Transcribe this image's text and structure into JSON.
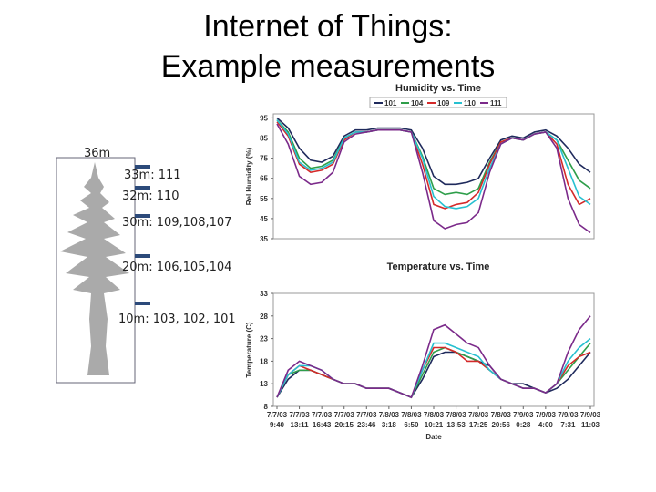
{
  "title_lines": [
    "Internet of Things:",
    "Example measurements"
  ],
  "tree": {
    "height_label": "36m",
    "sensors": [
      "33m: 111",
      "32m: 110",
      "30m: 109,108,107",
      "20m: 106,105,104",
      "10m: 103, 102, 101"
    ]
  },
  "chart_data": [
    {
      "type": "line",
      "title": "Humidity vs. Time",
      "y_label": "Rel Humidity (%)",
      "ylim": [
        35,
        97
      ],
      "yticks": [
        35,
        45,
        55,
        65,
        75,
        85,
        95
      ],
      "series": [
        {
          "name": "101",
          "color": "#1f2a5c",
          "values": [
            95,
            90,
            80,
            74,
            73,
            76,
            86,
            89,
            89,
            90,
            90,
            90,
            89,
            80,
            66,
            62,
            62,
            63,
            65,
            75,
            84,
            86,
            85,
            88,
            89,
            86,
            80,
            72,
            68
          ]
        },
        {
          "name": "104",
          "color": "#2e9e4a",
          "values": [
            94,
            88,
            75,
            70,
            71,
            74,
            85,
            88,
            88,
            89,
            89,
            89,
            88,
            76,
            60,
            57,
            58,
            57,
            60,
            73,
            83,
            85,
            84,
            87,
            88,
            84,
            74,
            64,
            60
          ]
        },
        {
          "name": "109",
          "color": "#d42a2a",
          "values": [
            93,
            86,
            72,
            68,
            69,
            72,
            84,
            88,
            88,
            89,
            89,
            89,
            88,
            72,
            52,
            50,
            52,
            53,
            58,
            72,
            83,
            85,
            84,
            87,
            88,
            82,
            62,
            52,
            55
          ]
        },
        {
          "name": "110",
          "color": "#27c0d0",
          "values": [
            94,
            87,
            73,
            69,
            70,
            73,
            85,
            88,
            88,
            89,
            89,
            89,
            88,
            75,
            56,
            51,
            50,
            51,
            55,
            70,
            82,
            85,
            84,
            87,
            88,
            84,
            70,
            56,
            52
          ]
        },
        {
          "name": "111",
          "color": "#7b2a8a",
          "values": [
            92,
            82,
            66,
            62,
            63,
            68,
            83,
            87,
            88,
            89,
            89,
            89,
            88,
            68,
            44,
            40,
            42,
            43,
            48,
            68,
            82,
            85,
            84,
            87,
            88,
            80,
            55,
            42,
            38
          ]
        }
      ]
    },
    {
      "type": "line",
      "title": "Temperature vs. Time",
      "y_label": "Temperature (C)",
      "x_label": "Date",
      "categories": [
        "7/7/03 9:40",
        null,
        "7/7/03 13:11",
        null,
        "7/7/03 16:43",
        null,
        "7/7/03 20:15",
        null,
        "7/7/03 23:46",
        null,
        "7/8/03 3:18",
        null,
        "7/8/03 6:50",
        null,
        "7/8/03 10:21",
        null,
        "7/8/03 13:53",
        null,
        "7/8/03 17:25",
        null,
        "7/8/03 20:56",
        null,
        "7/9/03 0:28",
        null,
        "7/9/03 4:00",
        null,
        "7/9/03 7:31",
        null,
        "7/9/03 11:03"
      ],
      "ylim": [
        8,
        33
      ],
      "yticks": [
        8,
        13,
        18,
        23,
        28,
        33
      ],
      "series": [
        {
          "name": "101",
          "color": "#1f2a5c",
          "values": [
            10,
            14,
            16,
            16,
            15,
            14,
            13,
            13,
            12,
            12,
            12,
            11,
            10,
            14,
            19,
            20,
            20,
            19,
            18,
            17,
            14,
            13,
            13,
            12,
            11,
            12,
            14,
            17,
            20
          ]
        },
        {
          "name": "104",
          "color": "#2e9e4a",
          "values": [
            10,
            15,
            16,
            16,
            15,
            14,
            13,
            13,
            12,
            12,
            12,
            11,
            10,
            15,
            20,
            21,
            20,
            19,
            18,
            16,
            14,
            13,
            12,
            12,
            11,
            13,
            16,
            19,
            22
          ]
        },
        {
          "name": "109",
          "color": "#d42a2a",
          "values": [
            10,
            15,
            17,
            16,
            15,
            14,
            13,
            13,
            12,
            12,
            12,
            11,
            10,
            16,
            21,
            21,
            20,
            18,
            18,
            16,
            14,
            13,
            12,
            12,
            11,
            13,
            17,
            19,
            20
          ]
        },
        {
          "name": "110",
          "color": "#27c0d0",
          "values": [
            10,
            15,
            17,
            17,
            16,
            14,
            13,
            13,
            12,
            12,
            12,
            11,
            10,
            16,
            22,
            22,
            21,
            20,
            19,
            16,
            14,
            13,
            12,
            12,
            11,
            13,
            18,
            21,
            23
          ]
        },
        {
          "name": "111",
          "color": "#7b2a8a",
          "values": [
            10,
            16,
            18,
            17,
            16,
            14,
            13,
            13,
            12,
            12,
            12,
            11,
            10,
            17,
            25,
            26,
            24,
            22,
            21,
            17,
            14,
            13,
            12,
            12,
            11,
            13,
            20,
            25,
            28
          ]
        }
      ]
    }
  ]
}
